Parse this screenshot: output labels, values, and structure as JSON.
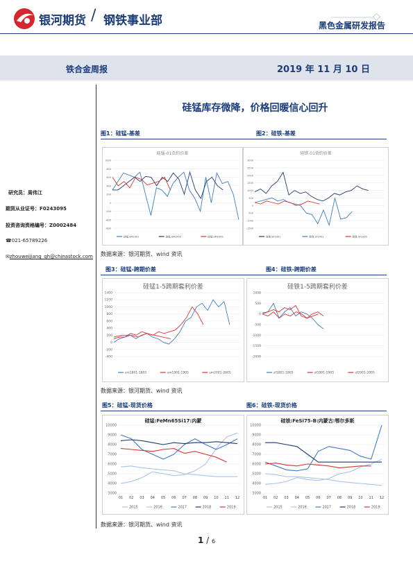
{
  "header": {
    "company": "银河期货",
    "dept": "钢铁事业部",
    "report_type": "黑色金属研发报告"
  },
  "band": {
    "left": "铁合金周报",
    "right": "2019 年 11 月 10 日"
  },
  "sidebar": {
    "researcher": "研究员：周伟江",
    "license": "期货从业证号：F0243095",
    "consult": "投资咨询资格编号：Z0002484",
    "phone": "021-65789226",
    "email": "zhouweijiang_qh@chinastock.com"
  },
  "title": "硅锰库存微降，价格回暖信心回升",
  "figures": [
    {
      "label": "图1：硅锰-基差",
      "chart_title": "硅锰-01合约价差",
      "legend": [
        "硅锰 SM2001",
        "硅锰 SM1905",
        "硅锰 SM2009"
      ]
    },
    {
      "label": "图2：硅铁-基差",
      "chart_title": "硅铁-01合约价差",
      "legend": [
        "硅铁 SF1901",
        "硅铁 SF2001",
        "硅铁 SF1905"
      ]
    },
    {
      "label": "图3：硅锰-跨期价差",
      "chart_title": "硅锰1-5跨期套利价差",
      "legend": [
        "sm1801-1805",
        "sm1901-1905",
        "sm2001-2005"
      ]
    },
    {
      "label": "图4：硅铁-跨期价差",
      "chart_title": "硅铁1-5跨期套利价差",
      "legend": [
        "sf1801-1805",
        "sf1901-1905",
        "sf2001-2005"
      ]
    },
    {
      "label": "图5：硅锰-现货价格",
      "chart_title": "硅锰:FeMn65Si17:内蒙",
      "legend": [
        "2015",
        "2016",
        "2017",
        "2018",
        "2019"
      ]
    },
    {
      "label": "图6：硅铁-现货价格",
      "chart_title": "硅铁:FeSi75-B:内蒙古:鄂尔多斯",
      "legend": [
        "2015",
        "2016",
        "2017",
        "2018",
        "2019"
      ]
    }
  ],
  "source": "数据来源：银河期货、wind 资讯",
  "page": {
    "current": "1",
    "total": "6"
  },
  "colors": {
    "brand": "#1a3c7a",
    "red": "#e03030",
    "navy": "#1f3a6b",
    "blue": "#3d7cc9",
    "lightblue": "#a9c4e8"
  },
  "chart_data": [
    {
      "type": "line",
      "title": "硅锰-01合约价差",
      "ylim": [
        -600,
        1000
      ],
      "yticks": [
        "1000",
        "800",
        "600",
        "400",
        "200",
        "0",
        "-200",
        "-400",
        "-600"
      ],
      "series": [
        {
          "name": "硅锰 SM2001",
          "values": [
            300,
            500,
            700,
            650,
            600,
            720,
            200,
            -300,
            350,
            300,
            150,
            450,
            600,
            720,
            300,
            100,
            -200,
            600,
            0,
            700,
            450,
            500,
            200,
            -400
          ]
        },
        {
          "name": "硅锰 SM1905",
          "values": [
            300,
            300,
            400,
            500,
            600,
            500,
            620,
            600,
            400,
            600,
            500,
            700,
            560,
            200,
            720,
            300,
            100,
            500,
            600,
            400,
            300
          ]
        },
        {
          "name": "硅锰 SM2009",
          "values": [
            600,
            400,
            500,
            350,
            600,
            550,
            420,
            460,
            500,
            600,
            300
          ]
        }
      ]
    },
    {
      "type": "line",
      "title": "硅铁-01合约价差",
      "ylim": [
        -1500,
        3000
      ],
      "yticks": [
        "3000",
        "2500",
        "2000",
        "1500",
        "1000",
        "500",
        "0",
        "-500",
        "-1000",
        "-1500"
      ],
      "series": [
        {
          "name": "硅铁 SF1901",
          "values": [
            900,
            1100,
            800,
            1300,
            1600,
            2200,
            700,
            1000,
            800,
            900,
            600,
            400,
            300,
            500,
            800,
            700,
            900,
            1000,
            1300,
            1100,
            1000
          ]
        },
        {
          "name": "硅铁 SF2001",
          "values": [
            200,
            300,
            400,
            500,
            300,
            400,
            200,
            100,
            0,
            -500,
            -600,
            -1200,
            -300,
            -1300,
            500,
            -900,
            -800,
            -400
          ]
        },
        {
          "name": "硅铁 SF1905",
          "values": [
            200,
            100,
            300,
            200,
            100,
            300,
            200,
            0,
            100,
            300,
            200,
            100
          ]
        }
      ]
    },
    {
      "type": "line",
      "title": "硅锰1-5跨期套利价差",
      "ylim": [
        -400,
        1400
      ],
      "yticks": [
        "1400",
        "1200",
        "1000",
        "800",
        "600",
        "400",
        "200",
        "0",
        "-200",
        "-400"
      ],
      "series": [
        {
          "name": "sm1801-1805",
          "values": [
            0,
            100,
            150,
            200,
            100,
            200,
            250,
            150,
            100,
            0,
            -50,
            100,
            300,
            600,
            700,
            1000,
            1100,
            900,
            1200,
            1000,
            1150,
            500
          ]
        },
        {
          "name": "sm1901-1905",
          "values": [
            100,
            150,
            150,
            250,
            200,
            300,
            250,
            200,
            300,
            250,
            300,
            350,
            500,
            700,
            1000,
            800,
            500
          ]
        },
        {
          "name": "sm2001-2005",
          "values": [
            150,
            200,
            200,
            150,
            250,
            200,
            150,
            100
          ]
        }
      ]
    },
    {
      "type": "line",
      "title": "硅铁1-5跨期套利价差",
      "ylim": [
        -2000,
        1000
      ],
      "yticks": [
        "1000",
        "500",
        "0",
        "-500",
        "-1000",
        "-1500",
        "-2000"
      ],
      "series": [
        {
          "name": "sf1801-1805",
          "values": [
            50,
            100,
            500,
            -200,
            100,
            300,
            -100,
            100,
            0,
            -200,
            -500,
            -700
          ]
        },
        {
          "name": "sf1901-1905",
          "values": [
            0,
            100,
            200,
            100,
            300,
            200,
            400,
            -100,
            -200,
            0,
            100,
            -100
          ]
        },
        {
          "name": "sf2001-2005",
          "values": [
            0,
            -100,
            100,
            -200,
            0,
            -100,
            100,
            0,
            -200,
            -100,
            0
          ]
        }
      ]
    },
    {
      "type": "line",
      "title": "硅锰:FeMn65Si17:内蒙",
      "xticks": [
        "01",
        "02",
        "03",
        "04",
        "05",
        "06",
        "07",
        "08",
        "09",
        "10",
        "11",
        "12"
      ],
      "ylim": [
        3000,
        10000
      ],
      "yticks": [
        "10000",
        "9000",
        "8000",
        "7000",
        "6000",
        "5000",
        "4000",
        "3000"
      ],
      "series": [
        {
          "name": "2015",
          "values": [
            5700,
            5800,
            5600,
            5500,
            5400,
            5300,
            5000,
            4900,
            4800,
            4700,
            4700,
            4700
          ]
        },
        {
          "name": "2016",
          "values": [
            4000,
            4200,
            4600,
            5200,
            5000,
            4800,
            4900,
            5300,
            6000,
            7600,
            8800,
            9200
          ]
        },
        {
          "name": "2017",
          "values": [
            9000,
            8600,
            7500,
            7000,
            6500,
            7000,
            8000,
            8600,
            8000,
            7500,
            8000,
            8600
          ]
        },
        {
          "name": "2018",
          "values": [
            8400,
            8500,
            8400,
            8200,
            8000,
            8200,
            8100,
            8200,
            8200,
            8300,
            8200,
            8100
          ]
        },
        {
          "name": "2019",
          "values": [
            7600,
            7500,
            7400,
            7300,
            7500,
            7600,
            7100,
            7300,
            7000,
            6700,
            6200,
            null
          ]
        }
      ]
    },
    {
      "type": "line",
      "title": "硅铁:FeSi75-B:内蒙古:鄂尔多斯",
      "xticks": [
        "01",
        "02",
        "03",
        "04",
        "05",
        "06",
        "07",
        "08",
        "09",
        "10",
        "11",
        "12"
      ],
      "ylim": [
        3000,
        10000
      ],
      "yticks": [
        "10000",
        "9000",
        "8000",
        "7000",
        "6000",
        "5000",
        "4000",
        "3000"
      ],
      "series": [
        {
          "name": "2015",
          "values": [
            5000,
            4900,
            4700,
            4700,
            4600,
            4500,
            4400,
            4200,
            4100,
            4000,
            3900,
            3800
          ]
        },
        {
          "name": "2016",
          "values": [
            3900,
            4000,
            4200,
            4600,
            4400,
            4300,
            4500,
            5000,
            5200,
            5700,
            6000,
            6500
          ]
        },
        {
          "name": "2017",
          "values": [
            6200,
            5800,
            5400,
            5300,
            5500,
            7300,
            7800,
            7600,
            7400,
            6800,
            6500,
            10000
          ]
        },
        {
          "name": "2018",
          "values": [
            8200,
            8200,
            8000,
            7800,
            7000,
            6200,
            6200,
            6200,
            6200,
            6200,
            6200,
            6200
          ]
        },
        {
          "name": "2019",
          "values": [
            6000,
            6100,
            5900,
            5800,
            6000,
            5900,
            5800,
            5600,
            5700,
            5800,
            5800,
            null
          ]
        }
      ]
    }
  ]
}
